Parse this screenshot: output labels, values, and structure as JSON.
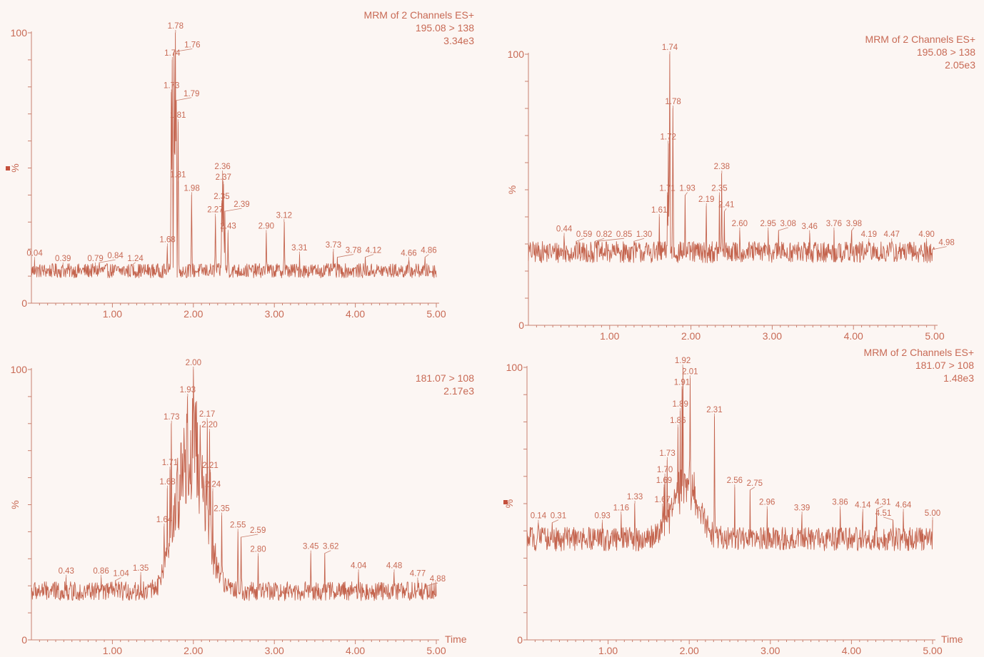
{
  "chart_data": [
    {
      "type": "line",
      "header": [
        "MRM of 2 Channels ES+",
        "195.08 > 138",
        "3.34e3"
      ],
      "ylabel": "%",
      "xlabel": "",
      "xlim": [
        0,
        5
      ],
      "ylim": [
        0,
        100
      ],
      "xticks": [
        "1.00",
        "2.00",
        "3.00",
        "4.00",
        "5.00"
      ],
      "yticks": [
        "0",
        "100"
      ],
      "marker": true,
      "baseline": 12,
      "noise": 1.2,
      "peaks": [
        {
          "rt": 0.04,
          "h": 16
        },
        {
          "rt": 0.39,
          "h": 14
        },
        {
          "rt": 0.79,
          "h": 14
        },
        {
          "rt": 0.84,
          "h": 15
        },
        {
          "rt": 1.24,
          "h": 14
        },
        {
          "rt": 1.68,
          "h": 21
        },
        {
          "rt": 1.73,
          "h": 78
        },
        {
          "rt": 1.74,
          "h": 90
        },
        {
          "rt": 1.76,
          "h": 93
        },
        {
          "rt": 1.78,
          "h": 100
        },
        {
          "rt": 1.79,
          "h": 75
        },
        {
          "rt": 1.81,
          "h": 67
        },
        {
          "rt": 1.81,
          "h": 45
        },
        {
          "rt": 1.98,
          "h": 40
        },
        {
          "rt": 2.35,
          "h": 37
        },
        {
          "rt": 2.27,
          "h": 32
        },
        {
          "rt": 2.36,
          "h": 48
        },
        {
          "rt": 2.37,
          "h": 44
        },
        {
          "rt": 2.39,
          "h": 34
        },
        {
          "rt": 2.43,
          "h": 26
        },
        {
          "rt": 2.9,
          "h": 26
        },
        {
          "rt": 3.12,
          "h": 30
        },
        {
          "rt": 3.31,
          "h": 18
        },
        {
          "rt": 3.73,
          "h": 19
        },
        {
          "rt": 3.78,
          "h": 17
        },
        {
          "rt": 4.12,
          "h": 17
        },
        {
          "rt": 4.66,
          "h": 16
        },
        {
          "rt": 4.86,
          "h": 17
        }
      ],
      "labels": [
        "0.04",
        "0.39",
        "0.79",
        "0.84",
        "1.24",
        "1.68",
        "1.73",
        "1.74",
        "1.76",
        "1.78",
        "1.79",
        "1.81",
        "1.81",
        "1.98",
        "2.35",
        "2.27",
        "2.36",
        "2.37",
        "2.39",
        "2.43",
        "2.90",
        "3.12",
        "3.31",
        "3.73",
        "3.78",
        "4.12",
        "4.66",
        "4.86"
      ]
    },
    {
      "type": "line",
      "header": [
        "MRM of 2 Channels ES+",
        "195.08 > 138",
        "2.05e3"
      ],
      "ylabel": "%",
      "xlabel": "",
      "xlim": [
        0,
        5
      ],
      "ylim": [
        0,
        100
      ],
      "xticks": [
        "1.00",
        "2.00",
        "3.00",
        "4.00",
        "5.00"
      ],
      "yticks": [
        "0",
        "100"
      ],
      "marker": false,
      "baseline": 27,
      "noise": 1.8,
      "peaks": [
        {
          "rt": 0.44,
          "h": 33
        },
        {
          "rt": 0.59,
          "h": 31
        },
        {
          "rt": 0.82,
          "h": 31
        },
        {
          "rt": 0.85,
          "h": 31
        },
        {
          "rt": 1.3,
          "h": 31
        },
        {
          "rt": 1.61,
          "h": 40
        },
        {
          "rt": 1.71,
          "h": 48
        },
        {
          "rt": 1.72,
          "h": 67
        },
        {
          "rt": 1.74,
          "h": 100
        },
        {
          "rt": 1.78,
          "h": 80
        },
        {
          "rt": 1.93,
          "h": 48
        },
        {
          "rt": 2.19,
          "h": 44
        },
        {
          "rt": 2.35,
          "h": 48
        },
        {
          "rt": 2.38,
          "h": 56
        },
        {
          "rt": 2.41,
          "h": 42
        },
        {
          "rt": 2.6,
          "h": 35
        },
        {
          "rt": 2.95,
          "h": 35
        },
        {
          "rt": 3.08,
          "h": 35
        },
        {
          "rt": 3.46,
          "h": 34
        },
        {
          "rt": 3.76,
          "h": 35
        },
        {
          "rt": 3.98,
          "h": 35
        },
        {
          "rt": 4.19,
          "h": 31
        },
        {
          "rt": 4.47,
          "h": 31
        },
        {
          "rt": 4.9,
          "h": 31
        },
        {
          "rt": 4.98,
          "h": 28
        }
      ],
      "labels": [
        "0.44",
        "0.59",
        "0.82",
        "0.85",
        "1.30",
        "1.61",
        "1.71",
        "1.72",
        "1.74",
        "1.78",
        "1.93",
        "2.19",
        "2.35",
        "2.38",
        "2.41",
        "2.60",
        "2.95",
        "3.08",
        "3.46",
        "3.76",
        "3.98",
        "4.19",
        "4.47",
        "4.90",
        "4.98"
      ]
    },
    {
      "type": "line",
      "header": [
        "",
        "181.07 > 108",
        "2.17e3"
      ],
      "ylabel": "%",
      "xlabel": "",
      "xlim": [
        0,
        5
      ],
      "ylim": [
        0,
        100
      ],
      "xticks": [
        "1.00",
        "2.00",
        "3.00",
        "4.00",
        "5.00"
      ],
      "yticks": [
        "0",
        "100"
      ],
      "marker": false,
      "baseline": 18,
      "noise": 1.6,
      "broad": {
        "center": 1.97,
        "width": 0.17,
        "height": 55
      },
      "peaks": [
        {
          "rt": 0.43,
          "h": 23
        },
        {
          "rt": 0.86,
          "h": 23
        },
        {
          "rt": 1.04,
          "h": 22
        },
        {
          "rt": 1.35,
          "h": 24
        },
        {
          "rt": 1.64,
          "h": 42
        },
        {
          "rt": 1.68,
          "h": 56
        },
        {
          "rt": 1.71,
          "h": 63
        },
        {
          "rt": 1.73,
          "h": 80
        },
        {
          "rt": 1.93,
          "h": 90
        },
        {
          "rt": 2.0,
          "h": 100
        },
        {
          "rt": 2.17,
          "h": 81
        },
        {
          "rt": 2.2,
          "h": 77
        },
        {
          "rt": 2.21,
          "h": 62
        },
        {
          "rt": 2.24,
          "h": 55
        },
        {
          "rt": 2.35,
          "h": 46
        },
        {
          "rt": 2.55,
          "h": 40
        },
        {
          "rt": 2.59,
          "h": 38
        },
        {
          "rt": 2.8,
          "h": 31
        },
        {
          "rt": 3.45,
          "h": 32
        },
        {
          "rt": 3.62,
          "h": 32
        },
        {
          "rt": 4.04,
          "h": 25
        },
        {
          "rt": 4.48,
          "h": 25
        },
        {
          "rt": 4.77,
          "h": 22
        },
        {
          "rt": 4.88,
          "h": 20
        }
      ],
      "labels": [
        "0.43",
        "0.86",
        "1.04",
        "1.35",
        "1.64",
        "1.68",
        "1.71",
        "1.73",
        "1.93",
        "2.00",
        "2.17",
        "2.20",
        "2.21",
        "2.24",
        "2.35",
        "2.55",
        "2.59",
        "2.80",
        "3.45",
        "3.62",
        "4.04",
        "4.48",
        "4.77",
        "4.88"
      ],
      "time_label": "Time"
    },
    {
      "type": "line",
      "header": [
        "MRM of 2 Channels ES+",
        "181.07 > 108",
        "1.48e3"
      ],
      "ylabel": "%",
      "xlabel": "",
      "xlim": [
        0,
        5
      ],
      "ylim": [
        0,
        100
      ],
      "xticks": [
        "1.00",
        "2.00",
        "3.00",
        "4.00",
        "5.00"
      ],
      "yticks": [
        "0",
        "100"
      ],
      "marker": true,
      "baseline": 37,
      "noise": 2.0,
      "broad": {
        "center": 1.95,
        "width": 0.16,
        "height": 20
      },
      "peaks": [
        {
          "rt": 0.14,
          "h": 43
        },
        {
          "rt": 0.31,
          "h": 43
        },
        {
          "rt": 0.93,
          "h": 43
        },
        {
          "rt": 1.16,
          "h": 46
        },
        {
          "rt": 1.33,
          "h": 50
        },
        {
          "rt": 1.67,
          "h": 49
        },
        {
          "rt": 1.69,
          "h": 56
        },
        {
          "rt": 1.7,
          "h": 60
        },
        {
          "rt": 1.73,
          "h": 66
        },
        {
          "rt": 1.86,
          "h": 78
        },
        {
          "rt": 1.89,
          "h": 84
        },
        {
          "rt": 1.91,
          "h": 92
        },
        {
          "rt": 1.92,
          "h": 100
        },
        {
          "rt": 2.01,
          "h": 96
        },
        {
          "rt": 2.31,
          "h": 82
        },
        {
          "rt": 2.56,
          "h": 56
        },
        {
          "rt": 2.75,
          "h": 55
        },
        {
          "rt": 2.96,
          "h": 48
        },
        {
          "rt": 3.39,
          "h": 46
        },
        {
          "rt": 3.86,
          "h": 48
        },
        {
          "rt": 4.14,
          "h": 47
        },
        {
          "rt": 4.31,
          "h": 48
        },
        {
          "rt": 4.64,
          "h": 47
        },
        {
          "rt": 4.51,
          "h": 44
        },
        {
          "rt": 5.0,
          "h": 44
        }
      ],
      "labels": [
        "0.14",
        "0.31",
        "0.93",
        "1.16",
        "1.33",
        "1.67",
        "1.69",
        "1.70",
        "1.73",
        "1.86",
        "1.89",
        "1.91",
        "1.92",
        "2.01",
        "2.31",
        "2.56",
        "2.75",
        "2.96",
        "3.39",
        "3.86",
        "4.14",
        "4.31",
        "4.64",
        "4.51",
        "5.00"
      ],
      "time_label": "Time"
    }
  ]
}
